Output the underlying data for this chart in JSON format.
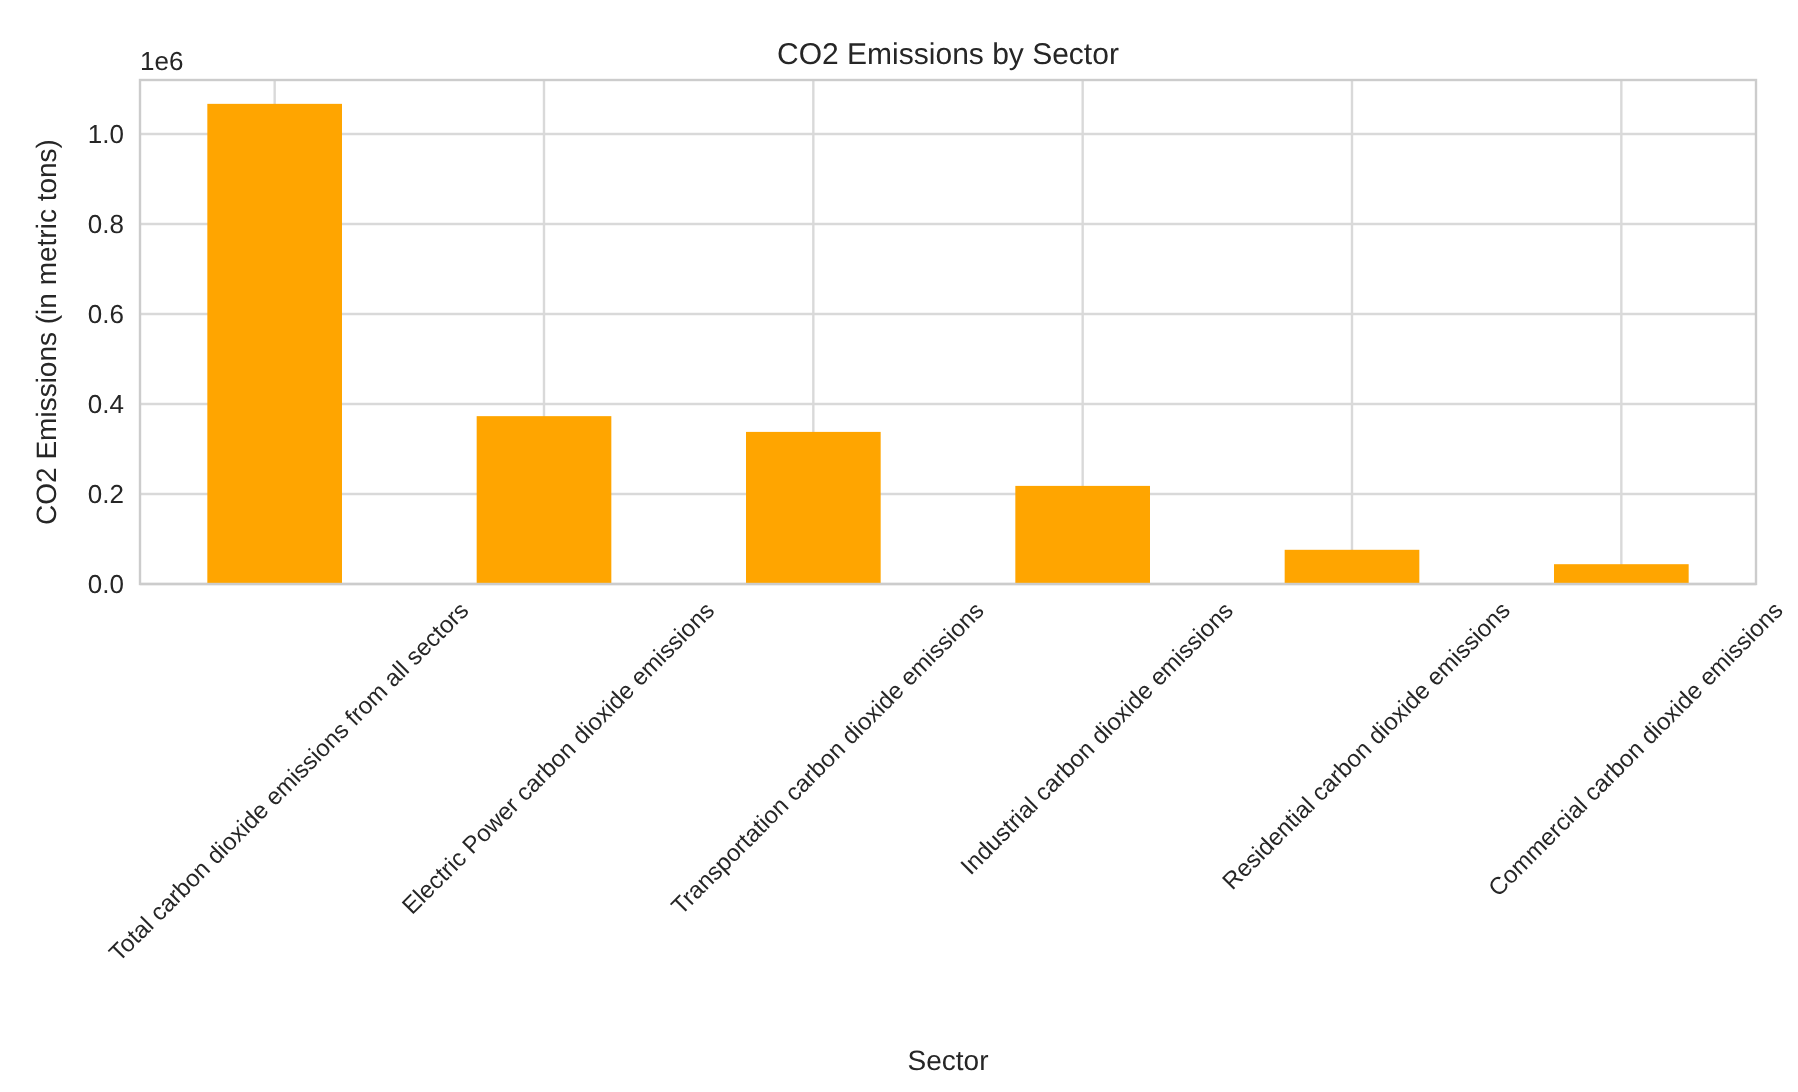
{
  "chart_data": {
    "type": "bar",
    "title": "CO2 Emissions by Sector",
    "xlabel": "Sector",
    "ylabel": "CO2 Emissions (in metric tons)",
    "annotations": [
      "1e6"
    ],
    "categories": [
      "Total carbon dioxide emissions from all sectors",
      "Electric Power carbon dioxide emissions",
      "Transportation carbon dioxide emissions",
      "Industrial carbon dioxide emissions",
      "Residential carbon dioxide emissions",
      "Commercial carbon dioxide emissions"
    ],
    "values": [
      1.067,
      0.373,
      0.338,
      0.218,
      0.076,
      0.044
    ],
    "color": "#ffa500",
    "ylim": [
      0,
      1.12
    ],
    "yticks": [
      {
        "value": 0,
        "label": "0.0"
      },
      {
        "value": 0.2,
        "label": "0.2"
      },
      {
        "value": 0.4,
        "label": "0.4"
      },
      {
        "value": 0.6,
        "label": "0.6"
      },
      {
        "value": 0.8,
        "label": "0.8"
      },
      {
        "value": 1,
        "label": "1.0"
      }
    ],
    "grid": true
  }
}
